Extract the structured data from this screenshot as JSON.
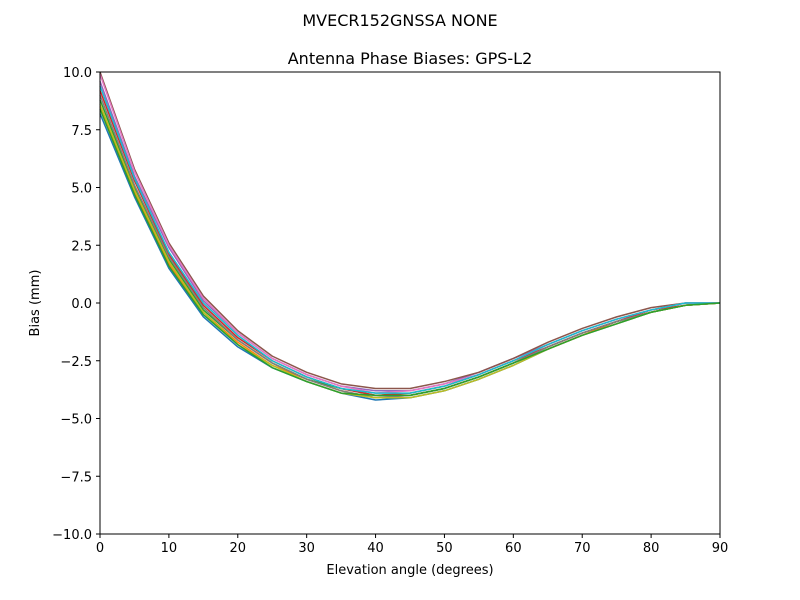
{
  "chart_data": {
    "type": "line",
    "suptitle": "MVECR152GNSSA   NONE",
    "title": "Antenna Phase Biases: GPS-L2",
    "xlabel": "Elevation angle (degrees)",
    "ylabel": "Bias (mm)",
    "xlim": [
      0,
      90
    ],
    "ylim": [
      -10,
      10
    ],
    "x_ticks": [
      0,
      10,
      20,
      30,
      40,
      50,
      60,
      70,
      80,
      90
    ],
    "x_tick_labels": [
      "0",
      "10",
      "20",
      "30",
      "40",
      "50",
      "60",
      "70",
      "80",
      "90"
    ],
    "y_ticks": [
      -10,
      -7.5,
      -5,
      -2.5,
      0,
      2.5,
      5,
      7.5,
      10
    ],
    "y_tick_labels": [
      "−10.0",
      "−7.5",
      "−5.0",
      "−2.5",
      "0.0",
      "2.5",
      "5.0",
      "7.5",
      "10.0"
    ],
    "grid": false,
    "legend": "none",
    "x": [
      0,
      5,
      10,
      15,
      20,
      25,
      30,
      35,
      40,
      45,
      50,
      55,
      60,
      65,
      70,
      75,
      80,
      85,
      90
    ],
    "series": [
      {
        "color": "#1f77b4",
        "values": [
          8.2,
          4.6,
          1.5,
          -0.6,
          -1.9,
          -2.8,
          -3.4,
          -3.9,
          -4.2,
          -4.1,
          -3.8,
          -3.3,
          -2.7,
          -2.0,
          -1.4,
          -0.9,
          -0.4,
          -0.1,
          0.0
        ]
      },
      {
        "color": "#ff7f0e",
        "values": [
          8.5,
          4.8,
          1.7,
          -0.4,
          -1.7,
          -2.7,
          -3.3,
          -3.8,
          -4.1,
          -4.0,
          -3.7,
          -3.2,
          -2.6,
          -2.0,
          -1.4,
          -0.8,
          -0.4,
          -0.1,
          0.0
        ]
      },
      {
        "color": "#2ca02c",
        "values": [
          8.8,
          5.0,
          1.9,
          -0.3,
          -1.6,
          -2.6,
          -3.3,
          -3.7,
          -4.0,
          -4.0,
          -3.7,
          -3.2,
          -2.6,
          -1.9,
          -1.3,
          -0.8,
          -0.4,
          -0.1,
          0.0
        ]
      },
      {
        "color": "#d62728",
        "values": [
          9.2,
          5.3,
          2.1,
          -0.1,
          -1.5,
          -2.5,
          -3.2,
          -3.7,
          -4.0,
          -3.9,
          -3.6,
          -3.1,
          -2.5,
          -1.9,
          -1.3,
          -0.8,
          -0.3,
          -0.1,
          0.0
        ]
      },
      {
        "color": "#9467bd",
        "values": [
          9.6,
          5.5,
          2.4,
          0.1,
          -1.3,
          -2.4,
          -3.1,
          -3.6,
          -3.8,
          -3.8,
          -3.5,
          -3.0,
          -2.4,
          -1.8,
          -1.2,
          -0.7,
          -0.3,
          0.0,
          0.0
        ]
      },
      {
        "color": "#8c564b",
        "values": [
          10.0,
          5.8,
          2.6,
          0.3,
          -1.2,
          -2.3,
          -3.0,
          -3.5,
          -3.7,
          -3.7,
          -3.4,
          -3.0,
          -2.4,
          -1.7,
          -1.1,
          -0.6,
          -0.2,
          0.0,
          0.0
        ]
      },
      {
        "color": "#e377c2",
        "values": [
          9.9,
          5.7,
          2.5,
          0.2,
          -1.3,
          -2.4,
          -3.1,
          -3.6,
          -3.9,
          -3.8,
          -3.5,
          -3.1,
          -2.5,
          -1.8,
          -1.2,
          -0.7,
          -0.3,
          0.0,
          0.0
        ]
      },
      {
        "color": "#7f7f7f",
        "values": [
          9.0,
          5.1,
          2.0,
          -0.2,
          -1.6,
          -2.6,
          -3.3,
          -3.8,
          -4.1,
          -4.0,
          -3.7,
          -3.2,
          -2.6,
          -1.9,
          -1.3,
          -0.8,
          -0.4,
          -0.1,
          0.0
        ]
      },
      {
        "color": "#bcbd22",
        "values": [
          8.6,
          4.9,
          1.8,
          -0.4,
          -1.8,
          -2.7,
          -3.4,
          -3.9,
          -4.1,
          -4.1,
          -3.8,
          -3.3,
          -2.7,
          -2.0,
          -1.4,
          -0.9,
          -0.4,
          -0.1,
          0.0
        ]
      },
      {
        "color": "#17becf",
        "values": [
          9.4,
          5.4,
          2.2,
          0.0,
          -1.4,
          -2.5,
          -3.2,
          -3.7,
          -3.9,
          -3.9,
          -3.6,
          -3.1,
          -2.5,
          -1.8,
          -1.2,
          -0.7,
          -0.3,
          0.0,
          0.0
        ]
      },
      {
        "color": "#2ca02c",
        "values": [
          8.4,
          4.7,
          1.6,
          -0.5,
          -1.8,
          -2.8,
          -3.4,
          -3.9,
          -4.0,
          -4.0,
          -3.7,
          -3.2,
          -2.6,
          -2.0,
          -1.4,
          -0.9,
          -0.4,
          -0.1,
          0.0
        ]
      }
    ]
  }
}
